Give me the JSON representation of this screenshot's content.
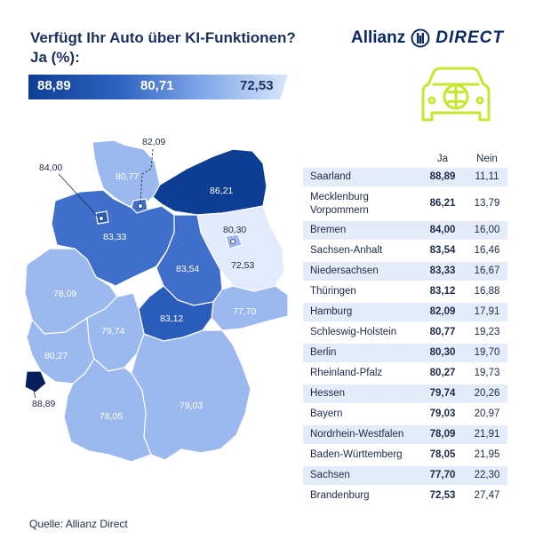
{
  "header": {
    "title": "Verfügt Ihr Auto über KI-Funktionen?",
    "subtitle": "Ja (%):"
  },
  "legend": {
    "max": "88,89",
    "mid": "80,71",
    "min": "72,53"
  },
  "logo": {
    "brand": "Allianz",
    "product": "DIRECT",
    "icon": "allianz-eagle-icon"
  },
  "illustration": {
    "icon": "car-brain-icon",
    "color": "#c8e62f"
  },
  "colors": {
    "darkest": "#0e3e93",
    "dark": "#2a5cbc",
    "mid": "#3f6fcb",
    "light": "#7fa4e4",
    "lighter": "#9bb9ee",
    "lightest": "#e1ebfb",
    "saarland": "#061f5c"
  },
  "map": {
    "states": [
      {
        "name": "Schleswig-Holstein",
        "value": "80,77"
      },
      {
        "name": "Hamburg",
        "value": "82,09"
      },
      {
        "name": "Bremen",
        "value": "84,00"
      },
      {
        "name": "Mecklenburg-Vorpommern",
        "value": "86,21"
      },
      {
        "name": "Niedersachsen",
        "value": "83,33"
      },
      {
        "name": "Berlin",
        "value": "80,30"
      },
      {
        "name": "Brandenburg",
        "value": "72,53"
      },
      {
        "name": "Sachsen-Anhalt",
        "value": "83,54"
      },
      {
        "name": "Nordrhein-Westfalen",
        "value": "78,09"
      },
      {
        "name": "Thüringen",
        "value": "83,12"
      },
      {
        "name": "Sachsen",
        "value": "77,70"
      },
      {
        "name": "Hessen",
        "value": "79,74"
      },
      {
        "name": "Rheinland-Pfalz",
        "value": "80,27"
      },
      {
        "name": "Saarland",
        "value": "88,89"
      },
      {
        "name": "Bayern",
        "value": "79,03"
      },
      {
        "name": "Baden-Württemberg",
        "value": "78,05"
      }
    ]
  },
  "table": {
    "col_ja": "Ja",
    "col_nein": "Nein",
    "rows": [
      {
        "name": "Saarland",
        "ja": "88,89",
        "nein": "11,11"
      },
      {
        "name": "Mecklenburg Vorpommern",
        "ja": "86,21",
        "nein": "13,79"
      },
      {
        "name": "Bremen",
        "ja": "84,00",
        "nein": "16,00"
      },
      {
        "name": "Sachsen-Anhalt",
        "ja": "83,54",
        "nein": "16,46"
      },
      {
        "name": "Niedersachsen",
        "ja": "83,33",
        "nein": "16,67"
      },
      {
        "name": "Thüringen",
        "ja": "83,12",
        "nein": "16,88"
      },
      {
        "name": "Hamburg",
        "ja": "82,09",
        "nein": "17,91"
      },
      {
        "name": "Schleswig-Holstein",
        "ja": "80,77",
        "nein": "19,23"
      },
      {
        "name": "Berlin",
        "ja": "80,30",
        "nein": "19,70"
      },
      {
        "name": "Rheinland-Pfalz",
        "ja": "80,27",
        "nein": "19,73"
      },
      {
        "name": "Hessen",
        "ja": "79,74",
        "nein": "20,26"
      },
      {
        "name": "Bayern",
        "ja": "79,03",
        "nein": "20,97"
      },
      {
        "name": "Nordrhein-Westfalen",
        "ja": "78,09",
        "nein": "21,91"
      },
      {
        "name": "Baden-Württemberg",
        "ja": "78,05",
        "nein": "21,95"
      },
      {
        "name": "Sachsen",
        "ja": "77,70",
        "nein": "22,30"
      },
      {
        "name": "Brandenburg",
        "ja": "72,53",
        "nein": "27,47"
      }
    ]
  },
  "footer": {
    "source": "Quelle: Allianz Direct"
  }
}
